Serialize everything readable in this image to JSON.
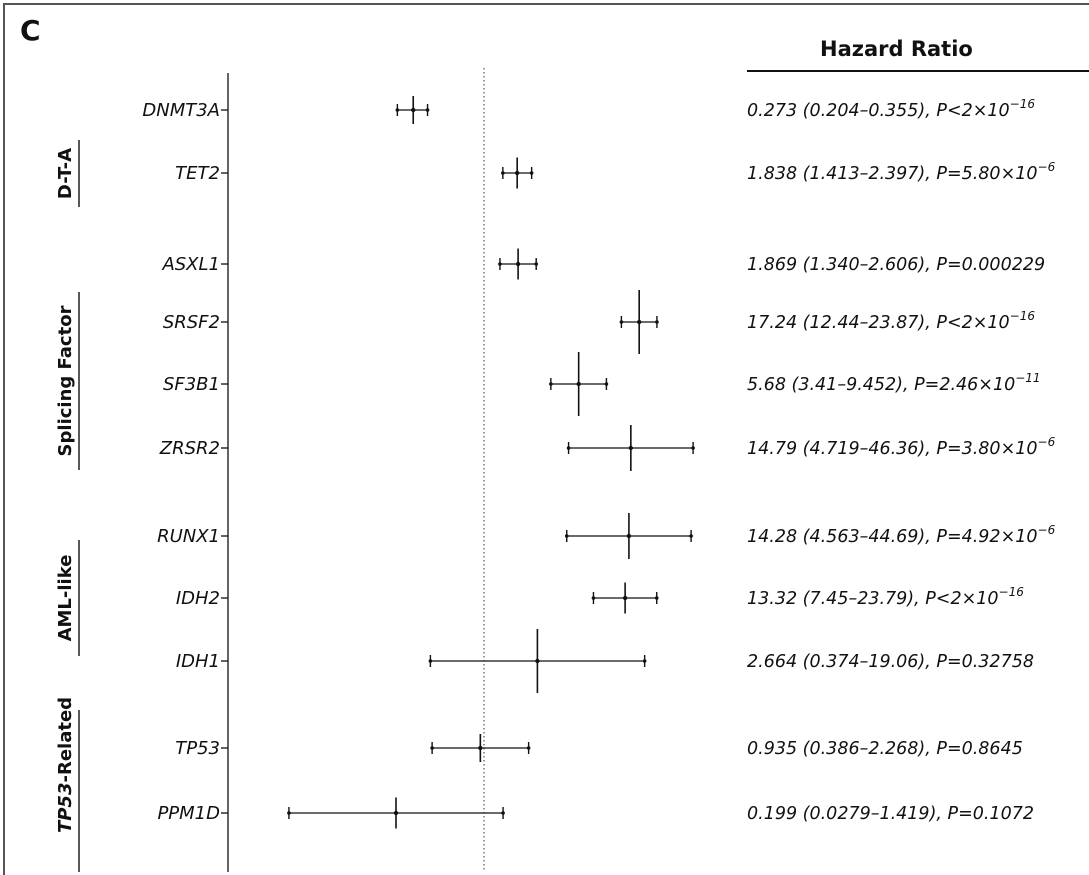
{
  "panel_label": "C",
  "header": {
    "title": "Hazard Ratio"
  },
  "colors": {
    "ink": "#111111",
    "frame": "#555555",
    "reference_line": "#333333"
  },
  "chart_data": {
    "type": "forest",
    "title": "",
    "xlabel": "",
    "ylabel": "",
    "reference_line": 1,
    "scale": "log",
    "xlim": [
      0.0279,
      46.36
    ],
    "grid": false,
    "groups": [
      {
        "name": "D-T-A",
        "italic": false,
        "rows": [
          0,
          1,
          2
        ]
      },
      {
        "name": "Splicing Factor",
        "italic": false,
        "rows": [
          3,
          4,
          5
        ]
      },
      {
        "name": "AML-like",
        "italic": false,
        "rows": [
          6,
          7,
          8
        ]
      },
      {
        "name_italic": "TP53",
        "name_suffix": "-Related",
        "rows": [
          9,
          10
        ]
      }
    ],
    "rows": [
      {
        "gene": "DNMT3A",
        "hr": 0.273,
        "lo": 0.204,
        "hi": 0.355,
        "label_main": "0.273 (0.204–0.355), P<2×10",
        "label_sup": "−16"
      },
      {
        "gene": "TET2",
        "hr": 1.838,
        "lo": 1.413,
        "hi": 2.397,
        "label_main": "1.838 (1.413–2.397), P=5.80×10",
        "label_sup": "−6"
      },
      {
        "gene": "ASXL1",
        "hr": 1.869,
        "lo": 1.34,
        "hi": 2.606,
        "label_main": "1.869 (1.340–2.606), P=0.000229",
        "label_sup": ""
      },
      {
        "gene": "SRSF2",
        "hr": 17.24,
        "lo": 12.44,
        "hi": 23.87,
        "label_main": "17.24 (12.44–23.87), P<2×10",
        "label_sup": "−16"
      },
      {
        "gene": "SF3B1",
        "hr": 5.68,
        "lo": 3.41,
        "hi": 9.452,
        "label_main": "5.68 (3.41–9.452), P=2.46×10",
        "label_sup": "−11"
      },
      {
        "gene": "ZRSR2",
        "hr": 14.79,
        "lo": 4.719,
        "hi": 46.36,
        "label_main": "14.79 (4.719–46.36), P=3.80×10",
        "label_sup": "−6"
      },
      {
        "gene": "RUNX1",
        "hr": 14.28,
        "lo": 4.563,
        "hi": 44.69,
        "label_main": "14.28 (4.563–44.69), P=4.92×10",
        "label_sup": "−6"
      },
      {
        "gene": "IDH2",
        "hr": 13.32,
        "lo": 7.45,
        "hi": 23.79,
        "label_main": "13.32 (7.45–23.79), P<2×10",
        "label_sup": "−16"
      },
      {
        "gene": "IDH1",
        "hr": 2.664,
        "lo": 0.374,
        "hi": 19.06,
        "label_main": "2.664 (0.374–19.06), P=0.32758",
        "label_sup": ""
      },
      {
        "gene": "TP53",
        "hr": 0.935,
        "lo": 0.386,
        "hi": 2.268,
        "label_main": "0.935 (0.386–2.268), P=0.8645",
        "label_sup": ""
      },
      {
        "gene": "PPM1D",
        "hr": 0.199,
        "lo": 0.0279,
        "hi": 1.419,
        "label_main": "0.199 (0.0279–1.419), P=0.1072",
        "label_sup": ""
      }
    ],
    "box_sizes": [
      0.3,
      0.35,
      0.35,
      0.9,
      0.9,
      0.6,
      0.6,
      0.35,
      0.9,
      0.3,
      0.35
    ]
  }
}
